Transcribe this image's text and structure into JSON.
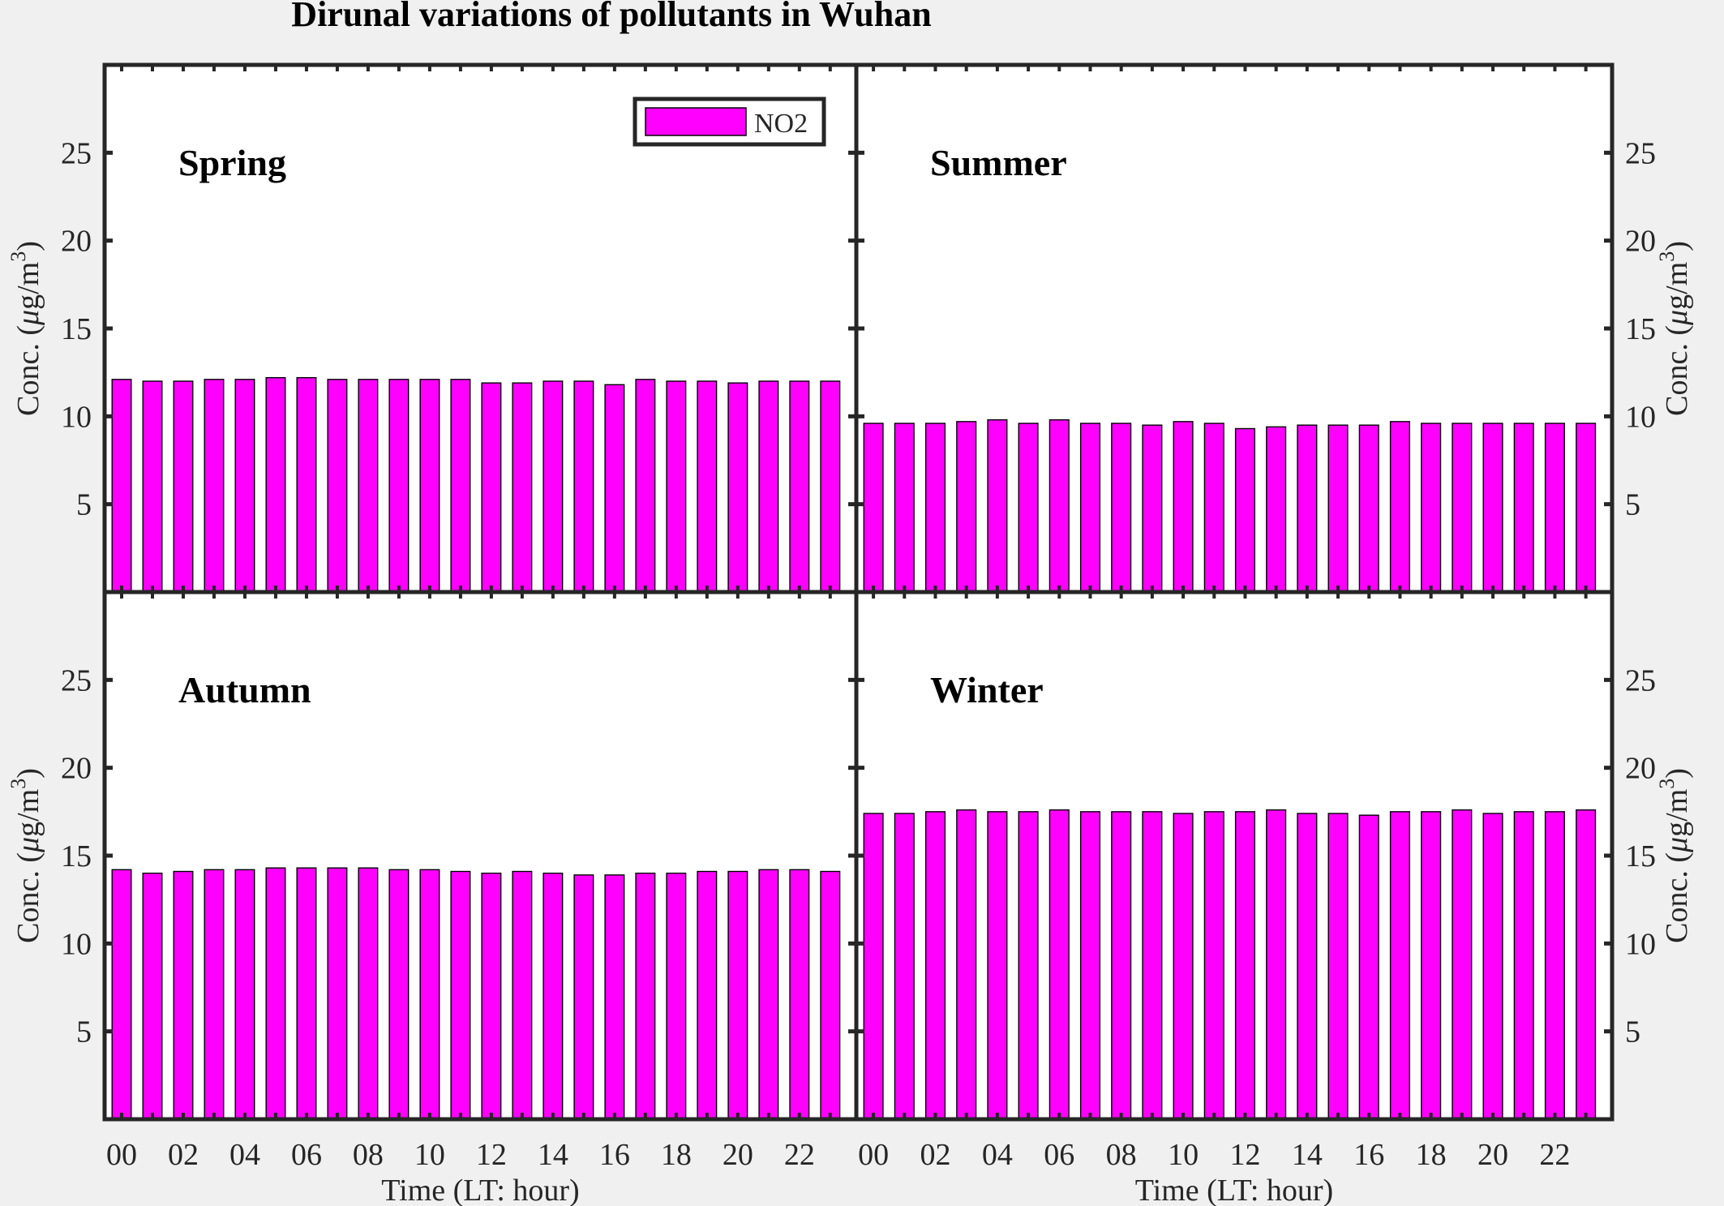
{
  "figure": {
    "title": "Dirunal variations of pollutants in Wuhan"
  },
  "legend": {
    "label": "NO2"
  },
  "colors": {
    "bar_fill": "#ff00ff",
    "bar_edge": "#000000",
    "axes": "#262626",
    "plot_bg": "#ffffff",
    "figure_bg": "#f0f0f0"
  },
  "chart_data": [
    {
      "type": "bar",
      "panel": "Spring",
      "x": [
        0,
        1,
        2,
        3,
        4,
        5,
        6,
        7,
        8,
        9,
        10,
        11,
        12,
        13,
        14,
        15,
        16,
        17,
        18,
        19,
        20,
        21,
        22,
        23
      ],
      "series": [
        {
          "name": "NO2",
          "values": [
            12.1,
            12.0,
            12.0,
            12.1,
            12.1,
            12.2,
            12.2,
            12.1,
            12.1,
            12.1,
            12.1,
            12.1,
            11.9,
            11.9,
            12.0,
            12.0,
            11.8,
            12.1,
            12.0,
            12.0,
            11.9,
            12.0,
            12.0,
            12.0
          ]
        }
      ],
      "xticks": [
        "00",
        "02",
        "04",
        "06",
        "08",
        "10",
        "12",
        "14",
        "16",
        "18",
        "20",
        "22"
      ],
      "yticks": [
        "5",
        "10",
        "15",
        "20",
        "25"
      ],
      "ylabel": "Conc. (μg/m3)",
      "xlabel": "",
      "ylim": [
        0,
        30
      ]
    },
    {
      "type": "bar",
      "panel": "Summer",
      "x": [
        0,
        1,
        2,
        3,
        4,
        5,
        6,
        7,
        8,
        9,
        10,
        11,
        12,
        13,
        14,
        15,
        16,
        17,
        18,
        19,
        20,
        21,
        22,
        23
      ],
      "series": [
        {
          "name": "NO2",
          "values": [
            9.6,
            9.6,
            9.6,
            9.7,
            9.8,
            9.6,
            9.8,
            9.6,
            9.6,
            9.5,
            9.7,
            9.6,
            9.3,
            9.4,
            9.5,
            9.5,
            9.5,
            9.7,
            9.6,
            9.6,
            9.6,
            9.6,
            9.6,
            9.6
          ]
        }
      ],
      "xticks": [],
      "yticks": [
        "5",
        "10",
        "15",
        "20",
        "25"
      ],
      "ylabel": "Conc. (μg/m3)",
      "xlabel": "",
      "ylim": [
        0,
        30
      ]
    },
    {
      "type": "bar",
      "panel": "Autumn",
      "x": [
        0,
        1,
        2,
        3,
        4,
        5,
        6,
        7,
        8,
        9,
        10,
        11,
        12,
        13,
        14,
        15,
        16,
        17,
        18,
        19,
        20,
        21,
        22,
        23
      ],
      "series": [
        {
          "name": "NO2",
          "values": [
            14.2,
            14.0,
            14.1,
            14.2,
            14.2,
            14.3,
            14.3,
            14.3,
            14.3,
            14.2,
            14.2,
            14.1,
            14.0,
            14.1,
            14.0,
            13.9,
            13.9,
            14.0,
            14.0,
            14.1,
            14.1,
            14.2,
            14.2,
            14.1
          ]
        }
      ],
      "xticks": [
        "00",
        "02",
        "04",
        "06",
        "08",
        "10",
        "12",
        "14",
        "16",
        "18",
        "20",
        "22"
      ],
      "yticks": [
        "5",
        "10",
        "15",
        "20",
        "25"
      ],
      "ylabel": "Conc. (μg/m3)",
      "xlabel": "Time (LT: hour)",
      "ylim": [
        0,
        30
      ]
    },
    {
      "type": "bar",
      "panel": "Winter",
      "x": [
        0,
        1,
        2,
        3,
        4,
        5,
        6,
        7,
        8,
        9,
        10,
        11,
        12,
        13,
        14,
        15,
        16,
        17,
        18,
        19,
        20,
        21,
        22,
        23
      ],
      "series": [
        {
          "name": "NO2",
          "values": [
            17.4,
            17.4,
            17.5,
            17.6,
            17.5,
            17.5,
            17.6,
            17.5,
            17.5,
            17.5,
            17.4,
            17.5,
            17.5,
            17.6,
            17.4,
            17.4,
            17.3,
            17.5,
            17.5,
            17.6,
            17.4,
            17.5,
            17.5,
            17.6
          ]
        }
      ],
      "xticks": [
        "00",
        "02",
        "04",
        "06",
        "08",
        "10",
        "12",
        "14",
        "16",
        "18",
        "20",
        "22"
      ],
      "yticks": [
        "5",
        "10",
        "15",
        "20",
        "25"
      ],
      "ylabel": "Conc. (μg/m3)",
      "xlabel": "Time (LT: hour)",
      "ylim": [
        0,
        30
      ]
    }
  ]
}
